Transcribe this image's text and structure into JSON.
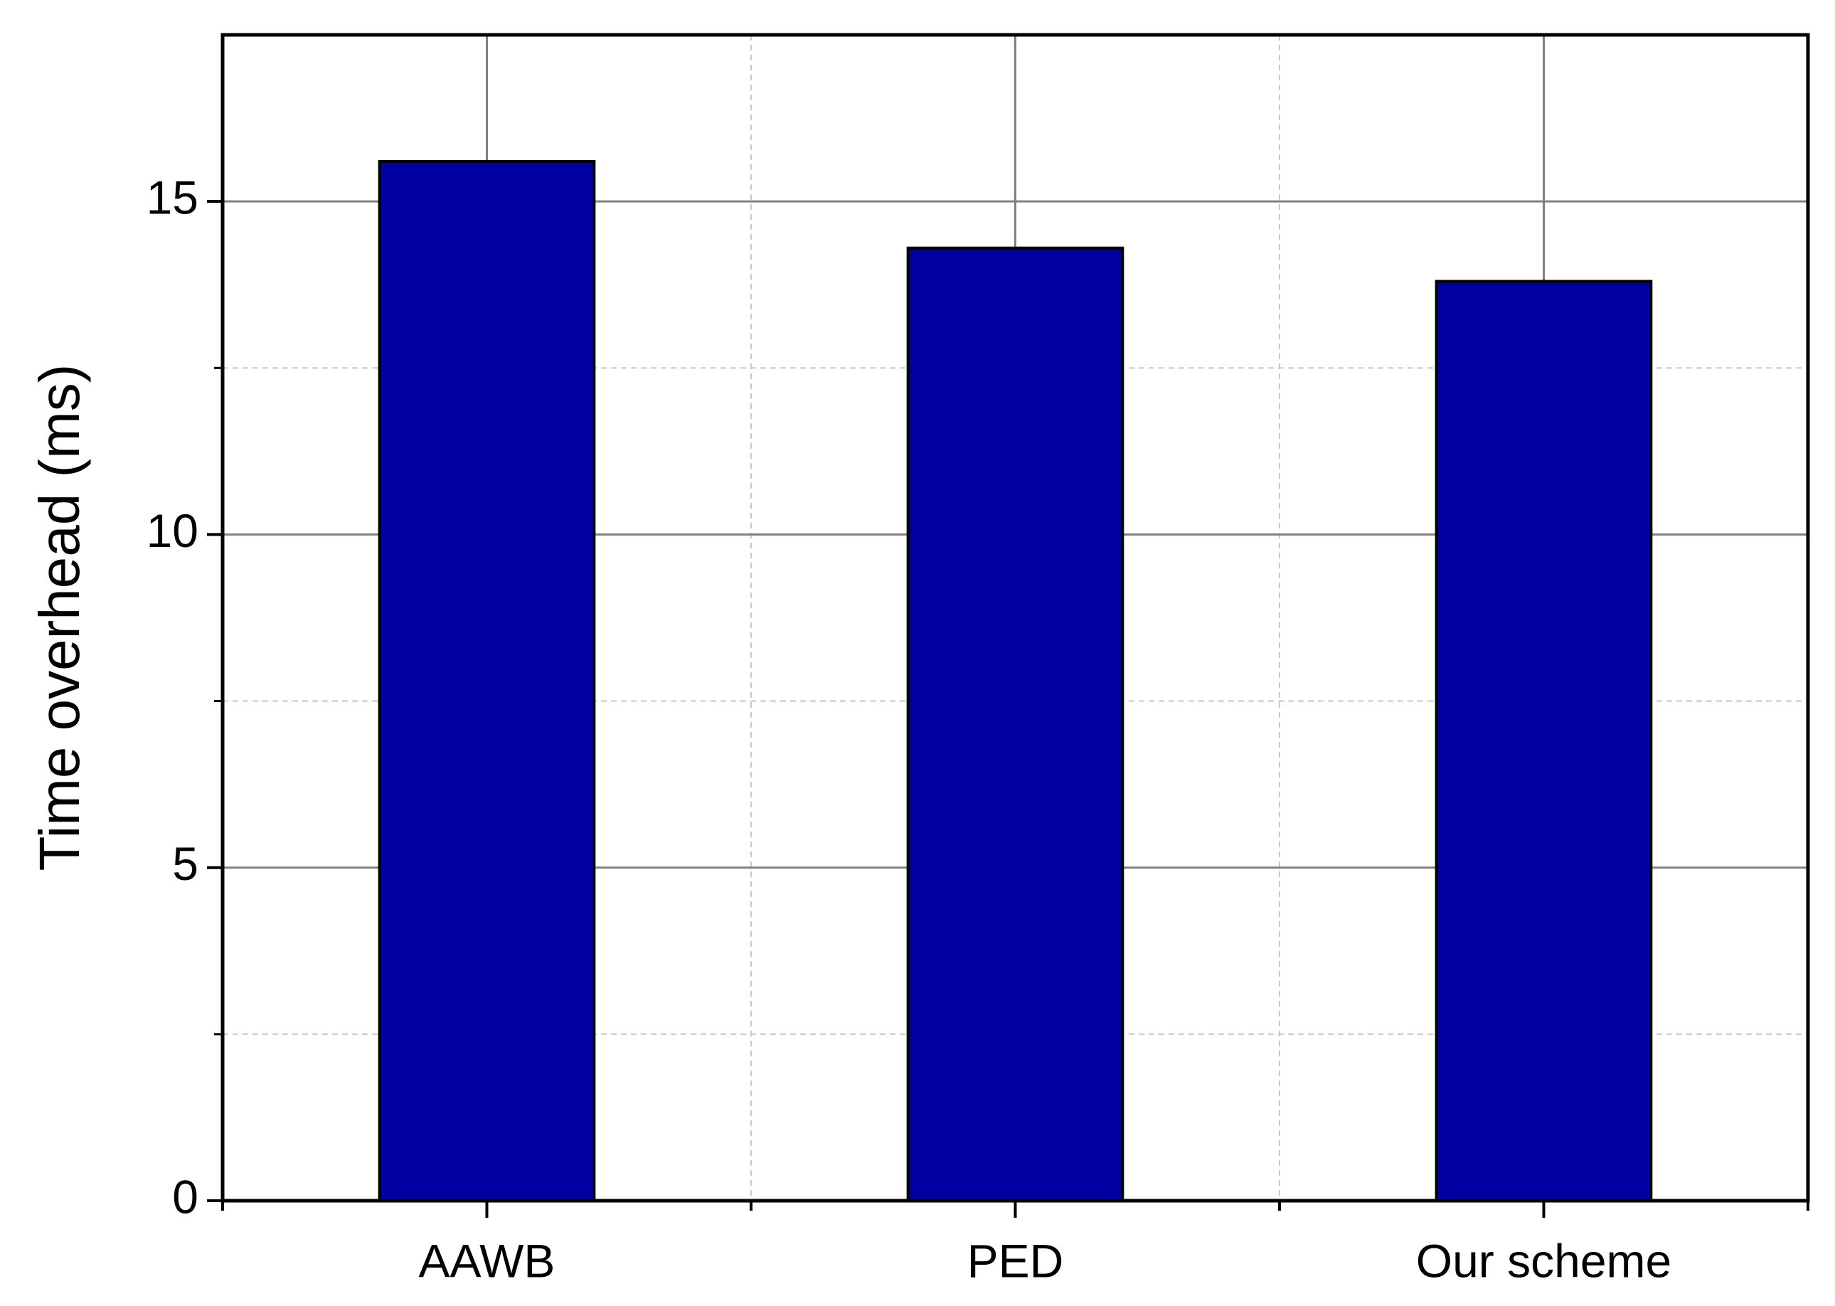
{
  "chart_data": {
    "type": "bar",
    "y_label": "Time overhead (ms)",
    "categories": [
      "AAWB",
      "PED",
      "Our scheme"
    ],
    "values": [
      15.6,
      14.3,
      13.8
    ],
    "color": "#0000a0",
    "ylim": [
      0,
      17.5
    ],
    "yticks": [
      0,
      5,
      10,
      15
    ],
    "minor_yticks": [
      2.5,
      7.5,
      12.5
    ],
    "grid": true
  }
}
